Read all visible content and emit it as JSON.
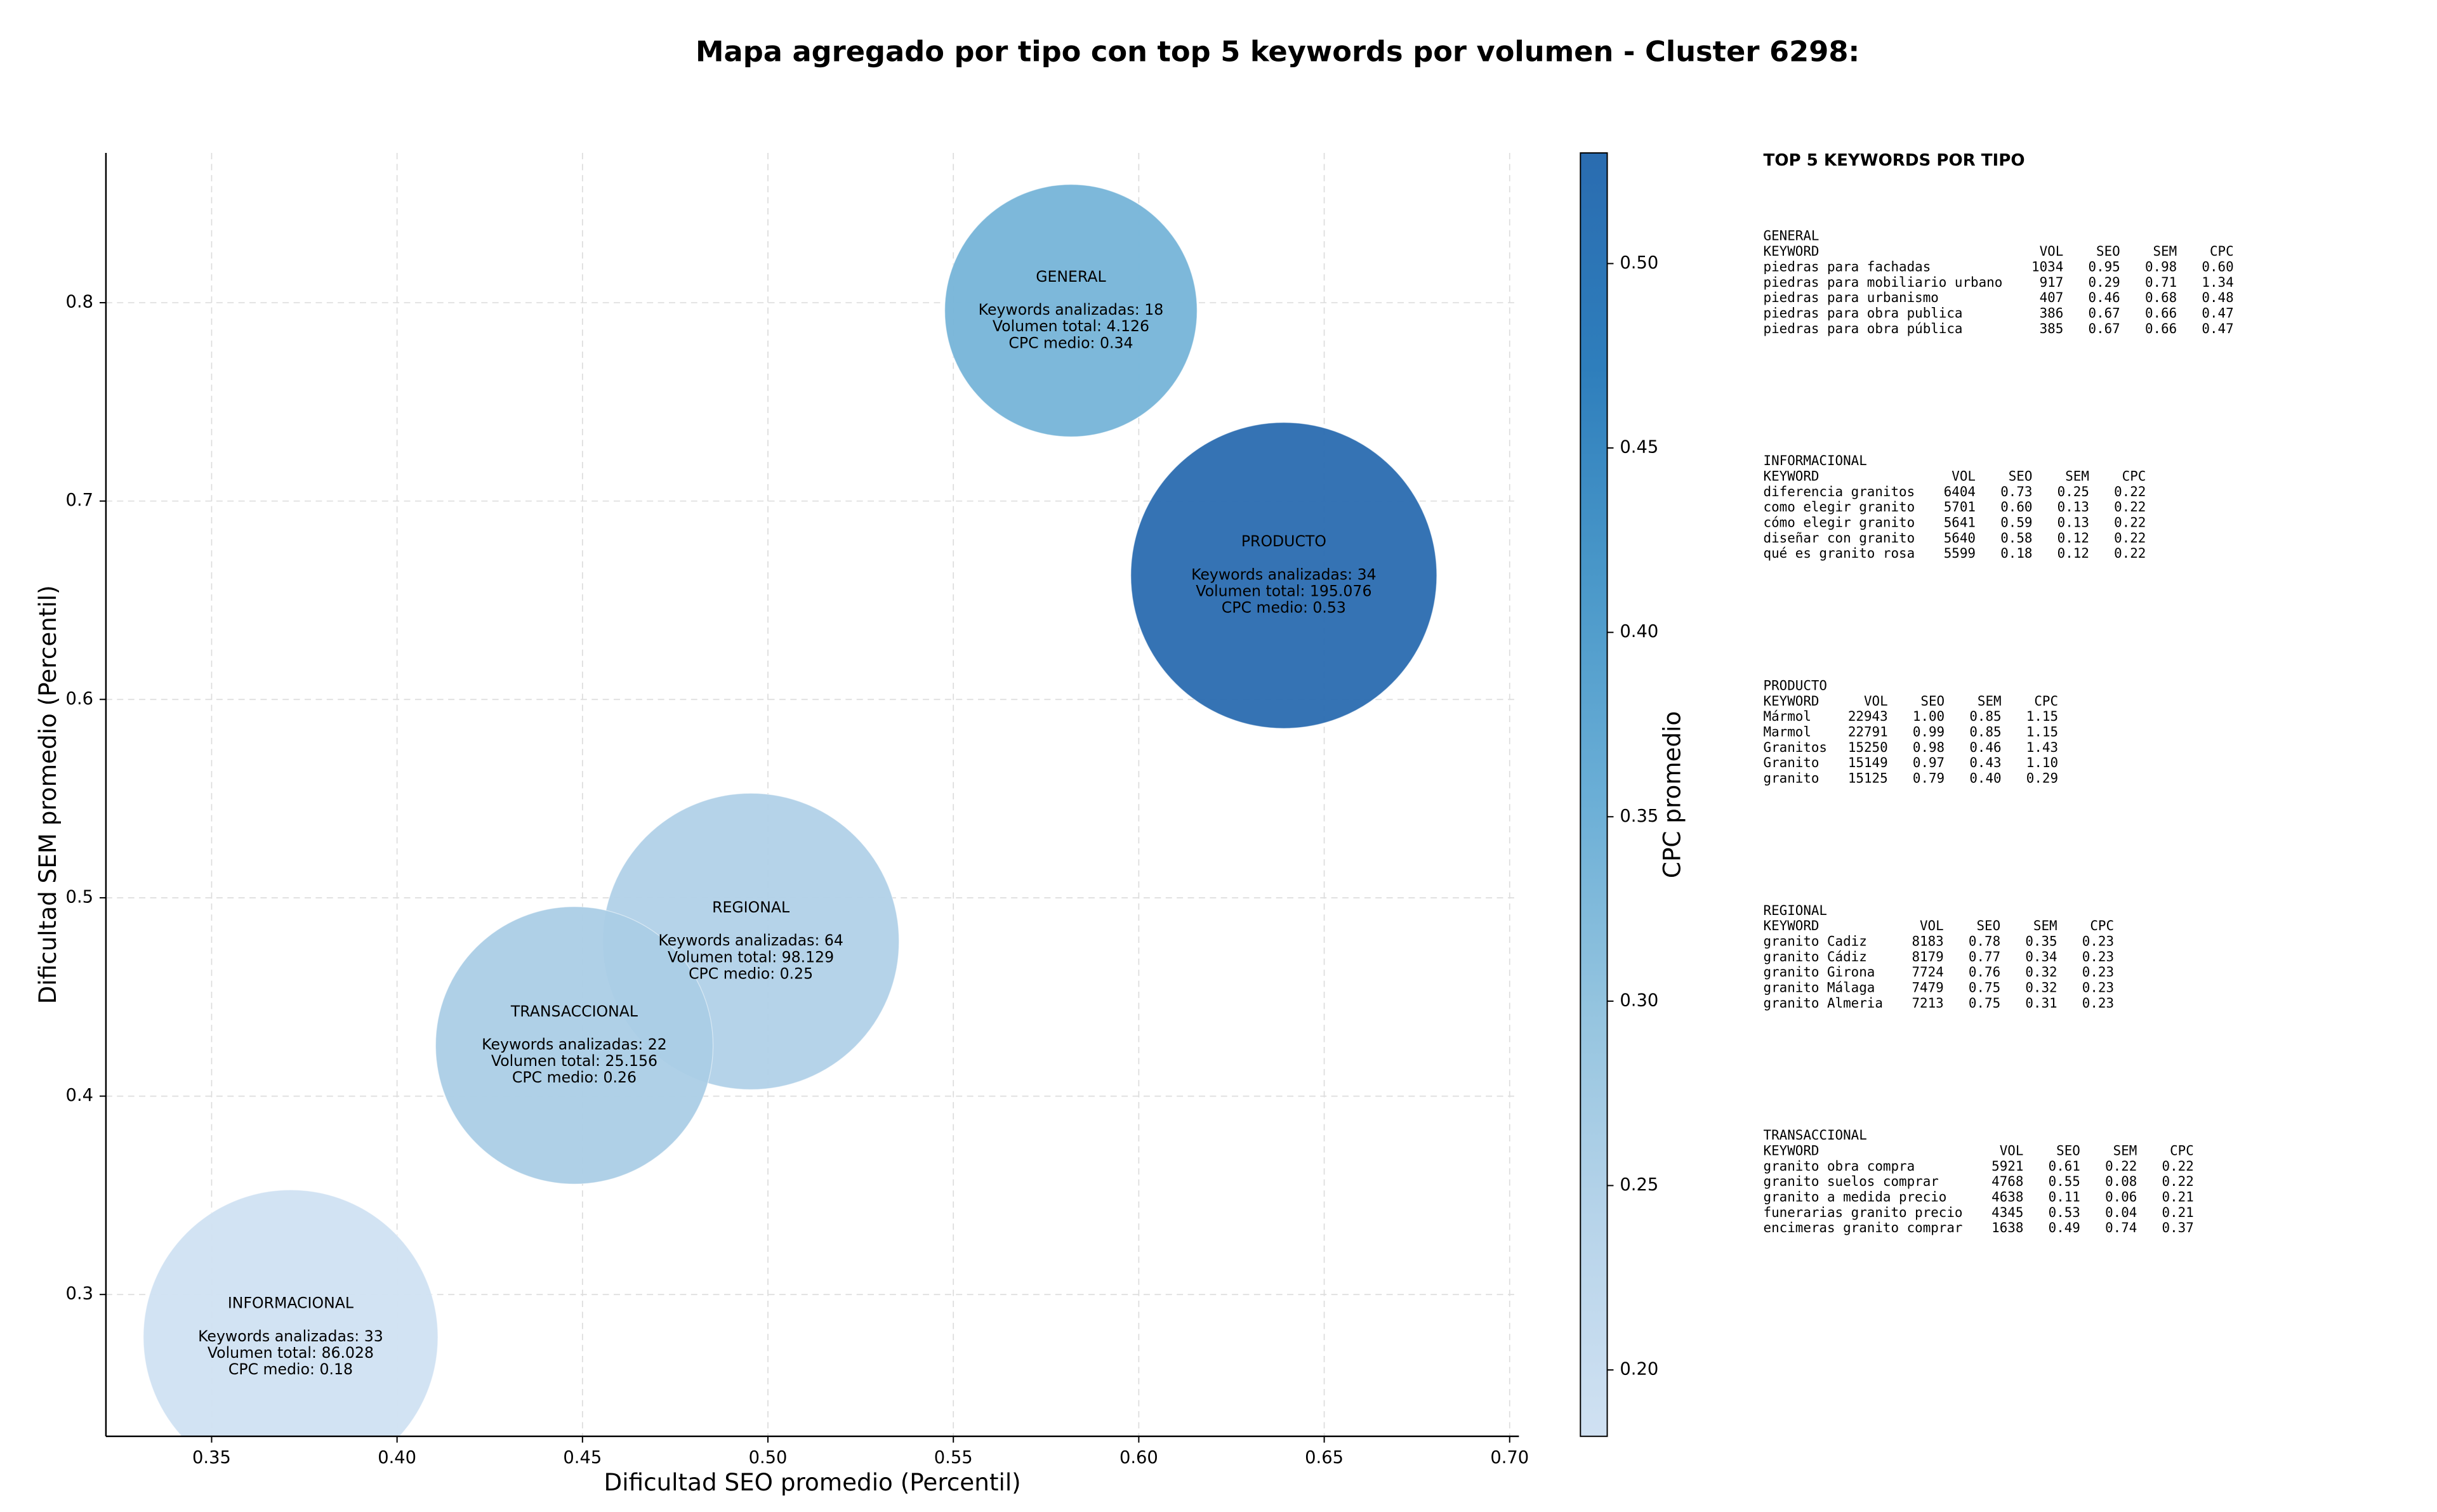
{
  "chart_data": {
    "type": "bubble",
    "title": "Mapa agregado por tipo con top 5 keywords por volumen - Cluster 6298:",
    "x_label": "Dificultad SEO promedio (Percentil)",
    "y_label": "Dificultad SEM promedio (Percentil)",
    "colorbar_label": "CPC promedio",
    "colormap": "Blues",
    "grid": true,
    "xlim": [
      0.3215,
      0.7025
    ],
    "ylim": [
      0.2285,
      0.8755
    ],
    "clim": [
      0.182,
      0.53
    ],
    "xticks": [
      0.35,
      {
        "value": 0.4,
        "label": "0.40"
      },
      0.45,
      {
        "value": 0.5,
        "label": "0.50"
      },
      0.55,
      {
        "value": 0.6,
        "label": "0.60"
      },
      0.65,
      {
        "value": 0.7,
        "label": "0.70"
      }
    ],
    "yticks": [
      0.3,
      0.4,
      0.5,
      0.6,
      0.7,
      0.8
    ],
    "cticks": [
      {
        "value": 0.2,
        "label": "0.20"
      },
      0.25,
      {
        "value": 0.3,
        "label": "0.30"
      },
      0.35,
      {
        "value": 0.4,
        "label": "0.40"
      },
      0.45,
      {
        "value": 0.5,
        "label": "0.50"
      }
    ],
    "series": [
      {
        "name": "GENERAL",
        "x": 0.5817,
        "y": 0.796,
        "volume": 4126,
        "cpc": 0.34,
        "labels": [
          "Keywords analizadas: 18",
          "Volumen total: 4.126",
          "CPC medio: 0.34"
        ]
      },
      {
        "name": "PRODUCTO",
        "x": 0.6391,
        "y": 0.6625,
        "volume": 195076,
        "cpc": 0.53,
        "labels": [
          "Keywords analizadas: 34",
          "Volumen total: 195.076",
          "CPC medio: 0.53"
        ]
      },
      {
        "name": "REGIONAL",
        "x": 0.4954,
        "y": 0.478,
        "volume": 98129,
        "cpc": 0.25,
        "labels": [
          "Keywords analizadas: 64",
          "Volumen total: 98.129",
          "CPC medio: 0.25"
        ]
      },
      {
        "name": "TRANSACCIONAL",
        "x": 0.4478,
        "y": 0.4256,
        "volume": 25156,
        "cpc": 0.26,
        "labels": [
          "Keywords analizadas: 22",
          "Volumen total: 25.156",
          "CPC medio: 0.26"
        ]
      },
      {
        "name": "INFORMACIONAL",
        "x": 0.3713,
        "y": 0.2785,
        "volume": 86028,
        "cpc": 0.18,
        "labels": [
          "Keywords analizadas: 33",
          "Volumen total: 86.028",
          "CPC medio: 0.18"
        ]
      }
    ]
  },
  "keyword_tables": {
    "title": "TOP 5 KEYWORDS POR TIPO",
    "tables": [
      {
        "name": "GENERAL",
        "columns": [
          "KEYWORD",
          "VOL",
          "SEO",
          "SEM",
          "CPC"
        ],
        "rows": [
          [
            "piedras para fachadas",
            "1034",
            "0.95",
            "0.98",
            "0.60"
          ],
          [
            "piedras para mobiliario urbano",
            "917",
            "0.29",
            "0.71",
            "1.34"
          ],
          [
            "piedras para urbanismo",
            "407",
            "0.46",
            "0.68",
            "0.48"
          ],
          [
            "piedras para obra publica",
            "386",
            "0.67",
            "0.66",
            "0.47"
          ],
          [
            "piedras para obra pública",
            "385",
            "0.67",
            "0.66",
            "0.47"
          ]
        ]
      },
      {
        "name": "INFORMACIONAL",
        "columns": [
          "KEYWORD",
          "VOL",
          "SEO",
          "SEM",
          "CPC"
        ],
        "rows": [
          [
            "diferencia granitos",
            "6404",
            "0.73",
            "0.25",
            "0.22"
          ],
          [
            "como elegir granito",
            "5701",
            "0.60",
            "0.13",
            "0.22"
          ],
          [
            "cómo elegir granito",
            "5641",
            "0.59",
            "0.13",
            "0.22"
          ],
          [
            "diseñar con granito",
            "5640",
            "0.58",
            "0.12",
            "0.22"
          ],
          [
            "qué es granito rosa",
            "5599",
            "0.18",
            "0.12",
            "0.22"
          ]
        ]
      },
      {
        "name": "PRODUCTO",
        "columns": [
          "KEYWORD",
          "VOL",
          "SEO",
          "SEM",
          "CPC"
        ],
        "rows": [
          [
            "Mármol",
            "22943",
            "1.00",
            "0.85",
            "1.15"
          ],
          [
            "Marmol",
            "22791",
            "0.99",
            "0.85",
            "1.15"
          ],
          [
            "Granitos",
            "15250",
            "0.98",
            "0.46",
            "1.43"
          ],
          [
            "Granito",
            "15149",
            "0.97",
            "0.43",
            "1.10"
          ],
          [
            "granito",
            "15125",
            "0.79",
            "0.40",
            "0.29"
          ]
        ]
      },
      {
        "name": "REGIONAL",
        "columns": [
          "KEYWORD",
          "VOL",
          "SEO",
          "SEM",
          "CPC"
        ],
        "rows": [
          [
            "granito Cadiz",
            "8183",
            "0.78",
            "0.35",
            "0.23"
          ],
          [
            "granito Cádiz",
            "8179",
            "0.77",
            "0.34",
            "0.23"
          ],
          [
            "granito Girona",
            "7724",
            "0.76",
            "0.32",
            "0.23"
          ],
          [
            "granito Málaga",
            "7479",
            "0.75",
            "0.32",
            "0.23"
          ],
          [
            "granito Almeria",
            "7213",
            "0.75",
            "0.31",
            "0.23"
          ]
        ]
      },
      {
        "name": "TRANSACCIONAL",
        "columns": [
          "KEYWORD",
          "VOL",
          "SEO",
          "SEM",
          "CPC"
        ],
        "rows": [
          [
            "granito obra compra",
            "5921",
            "0.61",
            "0.22",
            "0.22"
          ],
          [
            "granito suelos comprar",
            "4768",
            "0.55",
            "0.08",
            "0.22"
          ],
          [
            "granito a medida precio",
            "4638",
            "0.11",
            "0.06",
            "0.21"
          ],
          [
            "funerarias granito precio",
            "4345",
            "0.53",
            "0.04",
            "0.21"
          ],
          [
            "encimeras granito comprar",
            "1638",
            "0.49",
            "0.74",
            "0.37"
          ]
        ]
      }
    ]
  }
}
